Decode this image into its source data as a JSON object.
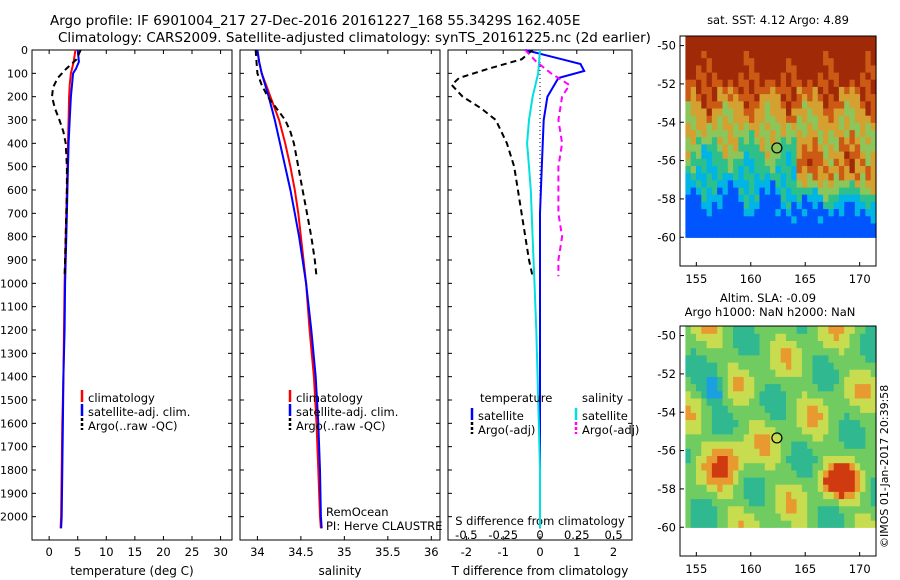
{
  "header": {
    "line1": "Argo profile: IF 6901004_217 27-Dec-2016 20161227_168 55.3429S 162.405E",
    "line2": "Climatology: CARS2009. Satellite-adjusted climatology: synTS_20161225.nc (2d earlier)"
  },
  "colors": {
    "climatology": "#ff0000",
    "satellite": "#0000ff",
    "argo": "#000000",
    "sal_satellite": "#00e0e0",
    "sal_argo": "#ff00ff"
  },
  "chart_data": [
    {
      "type": "line",
      "id": "temperature",
      "xlabel": "temperature (deg C)",
      "xlim": [
        -3,
        32
      ],
      "ylim": [
        2100,
        0
      ],
      "xticks": [
        0,
        5,
        10,
        15,
        20,
        25,
        30
      ],
      "yticks": [
        0,
        100,
        200,
        300,
        400,
        500,
        600,
        700,
        800,
        900,
        1000,
        1100,
        1200,
        1300,
        1400,
        1500,
        1600,
        1700,
        1800,
        1900,
        2000
      ],
      "legend": [
        "climatology",
        "satellite-adj. clim.",
        "Argo(..raw -QC)"
      ],
      "series": [
        {
          "name": "climatology",
          "style": "solid",
          "points": [
            [
              4.6,
              0
            ],
            [
              4.3,
              50
            ],
            [
              3.8,
              100
            ],
            [
              3.6,
              150
            ],
            [
              3.5,
              200
            ],
            [
              3.4,
              300
            ],
            [
              3.3,
              400
            ],
            [
              3.2,
              500
            ],
            [
              3.1,
              600
            ],
            [
              3.0,
              700
            ],
            [
              2.9,
              800
            ],
            [
              2.8,
              900
            ],
            [
              2.7,
              1000
            ],
            [
              2.6,
              1200
            ],
            [
              2.5,
              1400
            ],
            [
              2.3,
              1600
            ],
            [
              2.2,
              1800
            ],
            [
              2.1,
              2000
            ],
            [
              2.0,
              2050
            ]
          ]
        },
        {
          "name": "satellite-adj. clim.",
          "style": "solid",
          "points": [
            [
              5.0,
              0
            ],
            [
              5.2,
              50
            ],
            [
              4.7,
              80
            ],
            [
              4.2,
              100
            ],
            [
              4.0,
              150
            ],
            [
              3.8,
              200
            ],
            [
              3.6,
              300
            ],
            [
              3.4,
              400
            ],
            [
              3.3,
              500
            ],
            [
              3.2,
              600
            ],
            [
              3.1,
              700
            ],
            [
              3.0,
              800
            ],
            [
              2.9,
              900
            ],
            [
              2.8,
              1000
            ],
            [
              2.7,
              1200
            ],
            [
              2.5,
              1400
            ],
            [
              2.4,
              1600
            ],
            [
              2.3,
              1800
            ],
            [
              2.2,
              2000
            ],
            [
              2.1,
              2050
            ]
          ]
        },
        {
          "name": "Argo(..raw -QC)",
          "style": "dashed",
          "points": [
            [
              5.5,
              0
            ],
            [
              4.8,
              40
            ],
            [
              3.0,
              80
            ],
            [
              1.5,
              120
            ],
            [
              0.7,
              160
            ],
            [
              0.5,
              200
            ],
            [
              1.0,
              250
            ],
            [
              1.8,
              300
            ],
            [
              2.5,
              350
            ],
            [
              2.9,
              400
            ],
            [
              3.1,
              500
            ],
            [
              3.1,
              600
            ],
            [
              3.0,
              700
            ],
            [
              2.9,
              800
            ],
            [
              2.8,
              900
            ],
            [
              2.7,
              970
            ]
          ]
        }
      ]
    },
    {
      "type": "line",
      "id": "salinity",
      "xlabel": "salinity",
      "xlim": [
        33.8,
        36.1
      ],
      "ylim": [
        2100,
        0
      ],
      "xticks": [
        34,
        34.5,
        35,
        35.5,
        36
      ],
      "legend": [
        "climatology",
        "satellite-adj. clim.",
        "Argo(..raw -QC)"
      ],
      "series": [
        {
          "name": "climatology",
          "style": "solid",
          "points": [
            [
              34.0,
              0
            ],
            [
              34.02,
              50
            ],
            [
              34.05,
              100
            ],
            [
              34.1,
              150
            ],
            [
              34.15,
              200
            ],
            [
              34.25,
              300
            ],
            [
              34.32,
              400
            ],
            [
              34.38,
              500
            ],
            [
              34.43,
              600
            ],
            [
              34.47,
              700
            ],
            [
              34.5,
              800
            ],
            [
              34.53,
              900
            ],
            [
              34.56,
              1000
            ],
            [
              34.6,
              1200
            ],
            [
              34.65,
              1400
            ],
            [
              34.68,
              1600
            ],
            [
              34.7,
              1800
            ],
            [
              34.72,
              2000
            ],
            [
              34.73,
              2050
            ]
          ]
        },
        {
          "name": "satellite-adj. clim.",
          "style": "solid",
          "points": [
            [
              34.0,
              0
            ],
            [
              34.02,
              50
            ],
            [
              34.05,
              100
            ],
            [
              34.09,
              150
            ],
            [
              34.13,
              200
            ],
            [
              34.2,
              300
            ],
            [
              34.26,
              400
            ],
            [
              34.32,
              500
            ],
            [
              34.38,
              600
            ],
            [
              34.43,
              700
            ],
            [
              34.48,
              800
            ],
            [
              34.52,
              900
            ],
            [
              34.56,
              1000
            ],
            [
              34.62,
              1200
            ],
            [
              34.67,
              1400
            ],
            [
              34.7,
              1600
            ],
            [
              34.72,
              1800
            ],
            [
              34.73,
              2000
            ],
            [
              34.74,
              2050
            ]
          ]
        },
        {
          "name": "Argo(..raw -QC)",
          "style": "dashed",
          "points": [
            [
              33.98,
              0
            ],
            [
              33.99,
              50
            ],
            [
              34.0,
              100
            ],
            [
              34.05,
              150
            ],
            [
              34.12,
              200
            ],
            [
              34.22,
              250
            ],
            [
              34.32,
              300
            ],
            [
              34.38,
              350
            ],
            [
              34.42,
              400
            ],
            [
              34.47,
              500
            ],
            [
              34.52,
              600
            ],
            [
              34.57,
              700
            ],
            [
              34.62,
              800
            ],
            [
              34.66,
              900
            ],
            [
              34.68,
              970
            ]
          ]
        }
      ]
    },
    {
      "type": "line",
      "id": "differences",
      "xlabel_top": "S difference from climatology",
      "xlabel": "T difference from climatology",
      "xlim": [
        -2.5,
        2.5
      ],
      "ylim": [
        2100,
        0
      ],
      "xticks": [
        -2,
        -1,
        0,
        1,
        2
      ],
      "s_ticks": [
        "-0.5",
        "-0.25",
        "0",
        "0.25",
        "0.5"
      ],
      "s_tick_positions": [
        -2,
        -1,
        0,
        1,
        2
      ],
      "legend_title_temperature": "temperature",
      "legend_title_salinity": "salinity",
      "legend": [
        "satellite",
        "Argo(-adj)",
        "satellite",
        "Argo(-adj)"
      ],
      "series": [
        {
          "name": "satellite",
          "group": "temperature",
          "style": "solid",
          "points": [
            [
              -0.4,
              0
            ],
            [
              0.1,
              20
            ],
            [
              0.6,
              40
            ],
            [
              1.1,
              60
            ],
            [
              1.2,
              90
            ],
            [
              0.5,
              120
            ],
            [
              0.2,
              200
            ],
            [
              0.1,
              300
            ],
            [
              0.05,
              500
            ],
            [
              0.0,
              700
            ],
            [
              0.0,
              900
            ],
            [
              0.0,
              1200
            ],
            [
              0.0,
              1600
            ],
            [
              0.0,
              2050
            ]
          ]
        },
        {
          "name": "Argo(-adj)",
          "group": "temperature",
          "style": "dashed",
          "points": [
            [
              -0.2,
              0
            ],
            [
              -0.5,
              40
            ],
            [
              -1.4,
              80
            ],
            [
              -2.2,
              120
            ],
            [
              -2.4,
              150
            ],
            [
              -2.1,
              200
            ],
            [
              -1.6,
              250
            ],
            [
              -1.2,
              300
            ],
            [
              -0.9,
              400
            ],
            [
              -0.7,
              500
            ],
            [
              -0.5,
              700
            ],
            [
              -0.3,
              900
            ],
            [
              -0.2,
              970
            ]
          ]
        },
        {
          "name": "satellite",
          "group": "salinity",
          "style": "solid",
          "points": [
            [
              0.0,
              0
            ],
            [
              -0.05,
              100
            ],
            [
              -0.2,
              200
            ],
            [
              -0.3,
              300
            ],
            [
              -0.35,
              400
            ],
            [
              -0.3,
              500
            ],
            [
              -0.25,
              600
            ],
            [
              -0.2,
              800
            ],
            [
              -0.15,
              1000
            ],
            [
              -0.1,
              1200
            ],
            [
              -0.05,
              1500
            ],
            [
              0.0,
              1800
            ],
            [
              0.0,
              2050
            ]
          ]
        },
        {
          "name": "Argo(-adj)",
          "group": "salinity",
          "style": "dashed",
          "points": [
            [
              -0.4,
              0
            ],
            [
              -0.1,
              50
            ],
            [
              0.3,
              100
            ],
            [
              0.8,
              150
            ],
            [
              0.6,
              200
            ],
            [
              0.5,
              300
            ],
            [
              0.6,
              400
            ],
            [
              0.5,
              500
            ],
            [
              0.5,
              600
            ],
            [
              0.5,
              700
            ],
            [
              0.6,
              800
            ],
            [
              0.5,
              900
            ],
            [
              0.5,
              970
            ]
          ]
        }
      ]
    },
    {
      "type": "heatmap",
      "id": "sst-map",
      "title": "sat. SST: 4.12 Argo: 4.89",
      "xlim": [
        153.5,
        171.5
      ],
      "ylim": [
        -61.5,
        -49.5
      ],
      "xticks": [
        155,
        160,
        165,
        170
      ],
      "yticks": [
        -50,
        -52,
        -54,
        -56,
        -58,
        -60
      ],
      "marker": [
        162.4,
        -55.34
      ]
    },
    {
      "type": "heatmap",
      "id": "sla-map",
      "title1": "Altim. SLA: -0.09",
      "title2": "Argo h1000: NaN h2000: NaN",
      "xlim": [
        153.5,
        171.5
      ],
      "ylim": [
        -61.5,
        -49.5
      ],
      "xticks": [
        155,
        160,
        165,
        170
      ],
      "yticks": [
        -50,
        -52,
        -54,
        -56,
        -58,
        -60
      ],
      "marker": [
        162.4,
        -55.34
      ]
    }
  ],
  "annotations": {
    "remocean": "RemOcean",
    "pi": "PI: Herve CLAUSTRE",
    "credit": "©IMOS 01-Jan-2017 20:39:58"
  }
}
